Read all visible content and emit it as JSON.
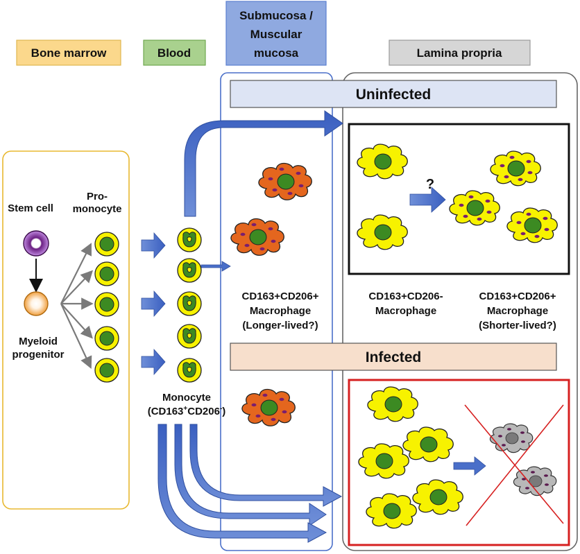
{
  "headers": {
    "bone_marrow": "Bone marrow",
    "blood": "Blood",
    "submucosa_line1": "Submucosa /",
    "submucosa_line2": "Muscular",
    "submucosa_line3": "mucosa",
    "lamina_propria": "Lamina propria"
  },
  "banners": {
    "uninfected": "Uninfected",
    "infected": "Infected"
  },
  "bone_marrow": {
    "stem_cell": "Stem cell",
    "promonocyte_line1": "Pro-",
    "promonocyte_line2": "monocyte",
    "myeloid_line1": "Myeloid",
    "myeloid_line2": "progenitor"
  },
  "blood": {
    "monocyte_line1": "Monocyte",
    "monocyte_line2_a": "(CD163",
    "monocyte_sup1": "+",
    "monocyte_line2_b": "CD206",
    "monocyte_sup2": "-",
    "monocyte_line2_c": ")"
  },
  "submucosa": {
    "macrophage_line1": "CD163+CD206+",
    "macrophage_line2": "Macrophage",
    "macrophage_line3": "(Longer-lived?)"
  },
  "lamina": {
    "neg_line1": "CD163+CD206-",
    "neg_line2": "Macrophage",
    "pos_line1": "CD163+CD206+",
    "pos_line2": "Macrophage",
    "pos_line3": "(Shorter-lived?)",
    "question": "?"
  },
  "colors": {
    "bone_marrow_fill": "#fbd88c",
    "blood_fill": "#a9d18e",
    "submucosa_fill": "#8fa9e0",
    "lamina_fill": "#d6d6d6",
    "arrow_blue": "#4a6fc9",
    "cell_yellow": "#f7f200",
    "nucleus_green": "#3c8a22",
    "macrophage_orange": "#e4661e",
    "infected_red": "#d62020"
  }
}
